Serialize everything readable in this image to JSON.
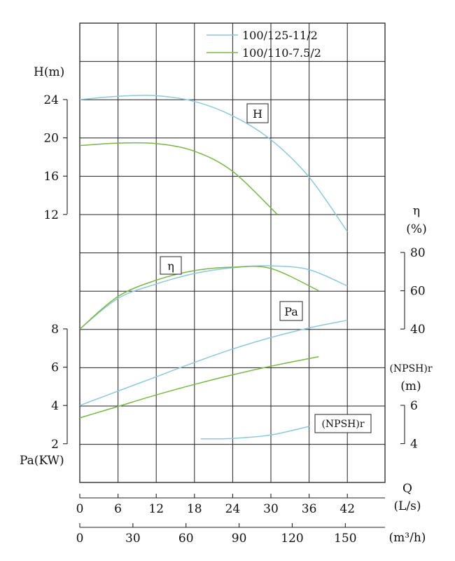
{
  "chart_data": {
    "type": "line",
    "legend": {
      "placement": "top-right",
      "entries": [
        {
          "label": "100/125-11/2",
          "color": "#8ec8da"
        },
        {
          "label": "100/110-7.5/2",
          "color": "#7ab648"
        }
      ]
    },
    "grid": true,
    "x_axes": {
      "ls": {
        "label": "Q",
        "unit": "(L/s)",
        "ticks": [
          "0",
          "6",
          "12",
          "18",
          "24",
          "30",
          "36",
          "42"
        ],
        "range": [
          0,
          42
        ]
      },
      "m3h": {
        "unit": "(m³/h)",
        "ticks": [
          "0",
          "30",
          "60",
          "90",
          "120",
          "150"
        ],
        "range": [
          0,
          150
        ]
      }
    },
    "y_axes": {
      "head": {
        "label": "H(m)",
        "ticks": [
          "24",
          "20",
          "16",
          "12"
        ],
        "range": [
          12,
          24
        ]
      },
      "efficiency": {
        "label_top": "η",
        "label_bottom": "(%)",
        "ticks": [
          "80",
          "60",
          "40"
        ],
        "range": [
          40,
          80
        ]
      },
      "power": {
        "label": "Pa(KW)",
        "ticks": [
          "8",
          "6",
          "4",
          "2"
        ],
        "range": [
          2,
          8
        ]
      },
      "npsh": {
        "label_top": "(NPSH)r",
        "label_bottom": "(m)",
        "ticks": [
          "6",
          "4"
        ],
        "range": [
          4,
          6
        ]
      }
    },
    "curve_labels": {
      "head": "H",
      "efficiency": "η",
      "power": "Pa",
      "npsh": "(NPSH)r"
    },
    "series": [
      {
        "name": "100/125-11/2",
        "quantity": "head",
        "color": "#8ec8da",
        "x": [
          0,
          6,
          12,
          18,
          24,
          30,
          36,
          42
        ],
        "y": [
          24,
          24.35,
          24.4,
          23.8,
          22.3,
          19.8,
          15.9,
          10.2
        ]
      },
      {
        "name": "100/110-7.5/2",
        "quantity": "head",
        "color": "#7ab648",
        "x": [
          0,
          6,
          12,
          18,
          24,
          31
        ],
        "y": [
          19.2,
          19.45,
          19.4,
          18.6,
          16.5,
          12
        ]
      },
      {
        "name": "100/125-11/2",
        "quantity": "efficiency",
        "color": "#8ec8da",
        "x": [
          0,
          6,
          12,
          18,
          24,
          30,
          36,
          42
        ],
        "y": [
          40,
          56,
          63.5,
          69,
          72,
          73,
          71,
          62.5
        ]
      },
      {
        "name": "100/110-7.5/2",
        "quantity": "efficiency",
        "color": "#7ab648",
        "x": [
          0,
          6,
          12,
          18,
          24,
          30,
          37.5
        ],
        "y": [
          40,
          57,
          65.5,
          70.5,
          72.3,
          71.6,
          60
        ]
      },
      {
        "name": "100/125-11/2",
        "quantity": "power",
        "color": "#8ec8da",
        "x": [
          0,
          6,
          12,
          18,
          24,
          30,
          36,
          42
        ],
        "y": [
          4,
          4.75,
          5.5,
          6.25,
          6.95,
          7.55,
          8.05,
          8.45
        ]
      },
      {
        "name": "100/110-7.5/2",
        "quantity": "power",
        "color": "#7ab648",
        "x": [
          0,
          6,
          12,
          18,
          24,
          30,
          37.5
        ],
        "y": [
          3.35,
          3.95,
          4.55,
          5.1,
          5.6,
          6.05,
          6.55
        ]
      },
      {
        "name": "100/125-11/2",
        "quantity": "npsh",
        "color": "#8ec8da",
        "x": [
          19,
          24,
          30,
          36
        ],
        "y": [
          4.25,
          4.27,
          4.45,
          4.9
        ]
      }
    ]
  }
}
